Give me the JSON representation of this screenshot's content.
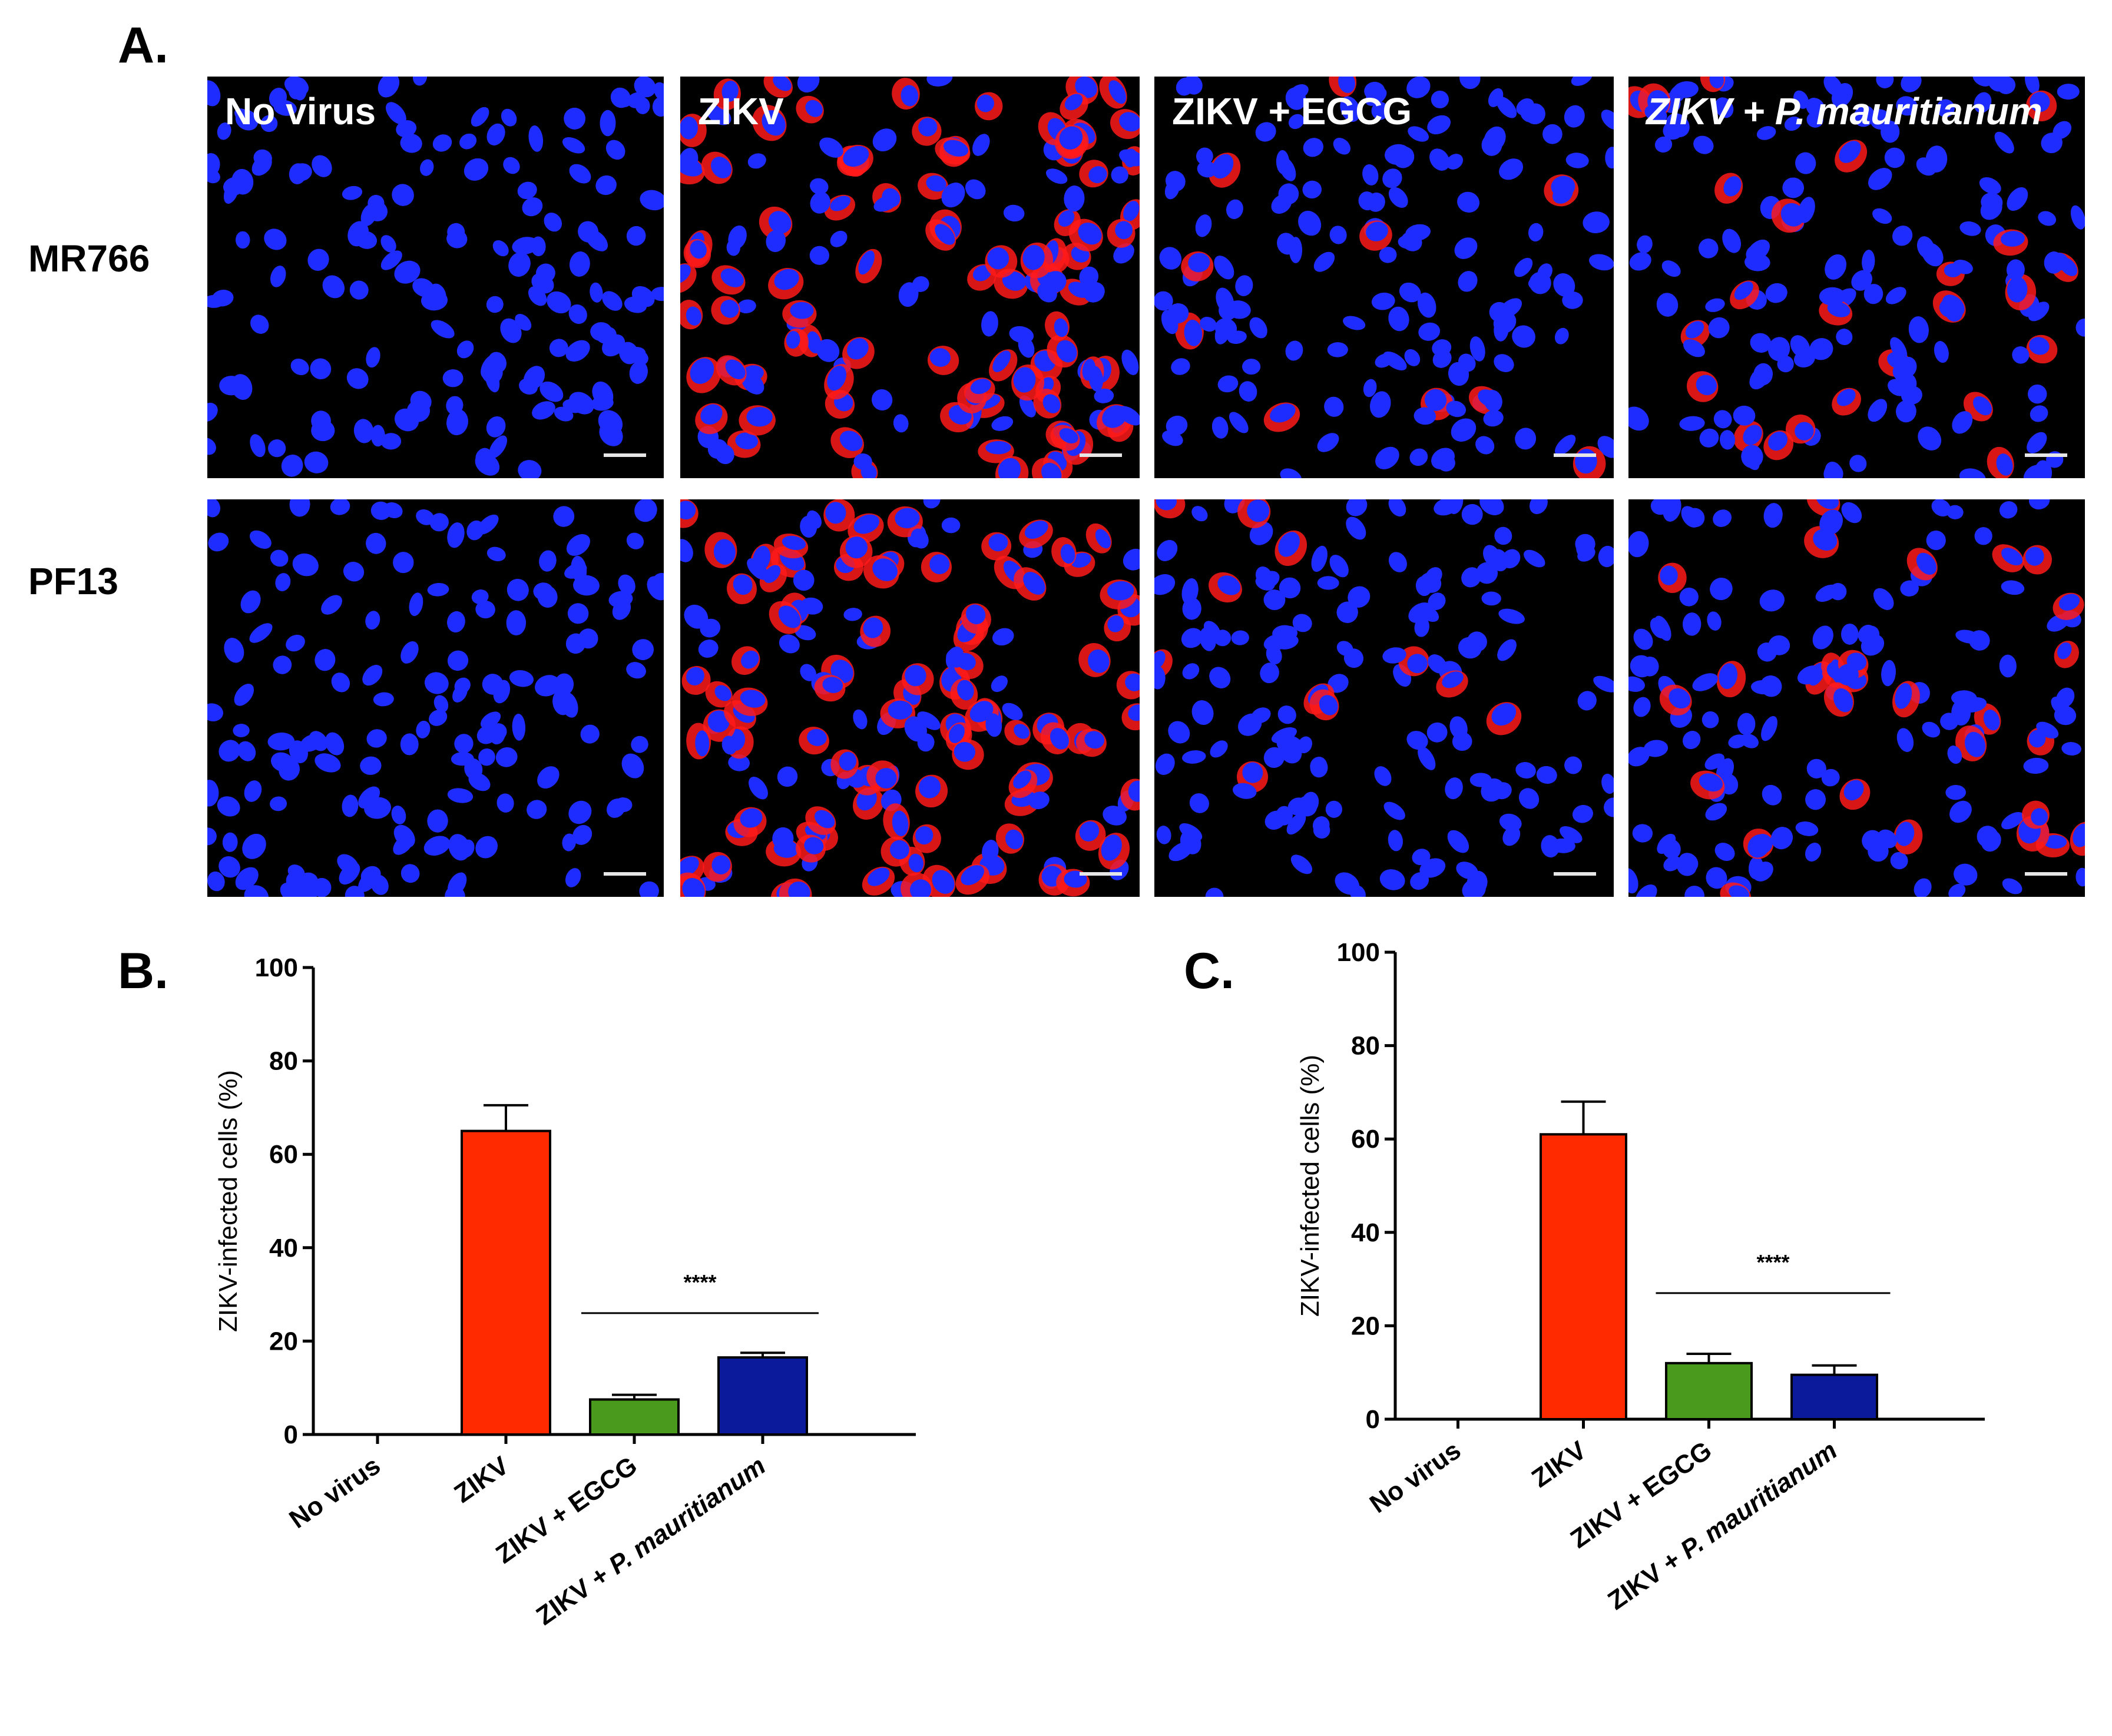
{
  "panel_a": {
    "letter": "A.",
    "rows": [
      {
        "label": "MR766"
      },
      {
        "label": "PF13"
      }
    ],
    "columns": [
      {
        "title": "No virus",
        "title_italic": "",
        "tail": "",
        "infected": 0
      },
      {
        "title": "ZIKV",
        "title_italic": "",
        "tail": "",
        "infected": 0.65
      },
      {
        "title": "ZIKV + EGCG",
        "title_italic": "",
        "tail": "",
        "infected": 0.08
      },
      {
        "title": "",
        "title_italic": "ZIKV + P. mauritianum",
        "tail": "",
        "infected": 0.16
      }
    ],
    "colors": {
      "nucleus": "#1f2cff",
      "zikv": "#ff1a1a",
      "background": "#000000"
    }
  },
  "chart_data": [
    {
      "panel_letter": "B.",
      "type": "bar",
      "categories": [
        "No virus",
        "ZIKV",
        "ZIKV + EGCG",
        "ZIKV + P. mauritianum"
      ],
      "category_italic_part": [
        "",
        "",
        "",
        "P. mauritianum"
      ],
      "values": [
        0,
        65,
        7.5,
        16.5
      ],
      "errors": [
        0,
        5.5,
        1,
        1
      ],
      "colors": [
        "#ffffff",
        "#ff2a00",
        "#4a9a1e",
        "#0a1a9a"
      ],
      "ylabel": "ZIKV-infected cells (%)",
      "ylim": [
        0,
        100
      ],
      "yticks": [
        0,
        20,
        40,
        60,
        80,
        100
      ],
      "significance": {
        "label": "****",
        "from": 2,
        "to": 3,
        "y": 26
      }
    },
    {
      "panel_letter": "C.",
      "type": "bar",
      "categories": [
        "No virus",
        "ZIKV",
        "ZIKV + EGCG",
        "ZIKV + P. mauritianum"
      ],
      "category_italic_part": [
        "",
        "",
        "",
        "P. mauritianum"
      ],
      "values": [
        0,
        61,
        12,
        9.5
      ],
      "errors": [
        0,
        7,
        2,
        2
      ],
      "colors": [
        "#ffffff",
        "#ff2a00",
        "#4a9a1e",
        "#0a1a9a"
      ],
      "ylabel": "ZIKV-infected cells (%)",
      "ylim": [
        0,
        100
      ],
      "yticks": [
        0,
        20,
        40,
        60,
        80,
        100
      ],
      "significance": {
        "label": "****",
        "from": 2,
        "to": 3,
        "y": 27
      }
    }
  ]
}
